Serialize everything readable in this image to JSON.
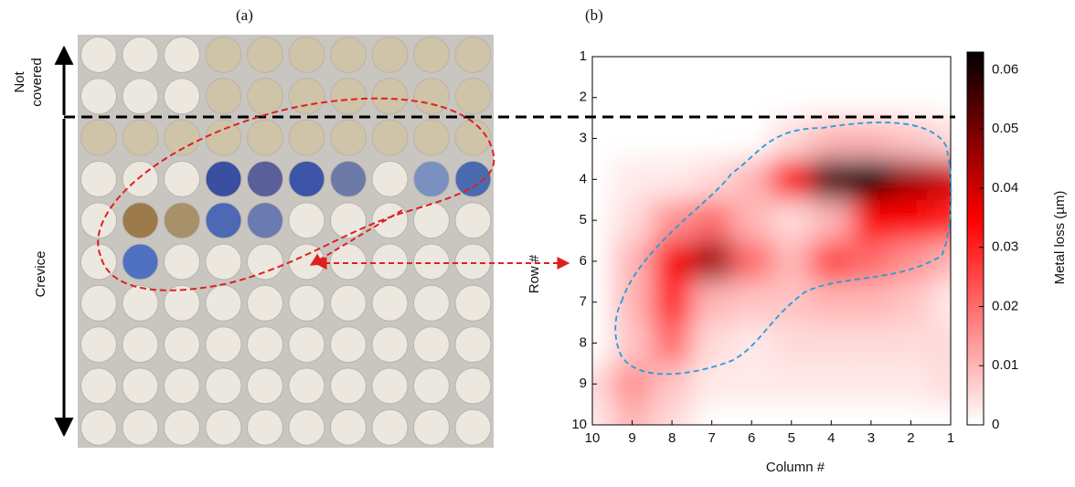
{
  "panel_a": {
    "label": "(a)",
    "top_label_lines": [
      "Not",
      "covered"
    ],
    "side_label": "Crevice"
  },
  "panel_b": {
    "label": "(b)"
  },
  "chart_data": {
    "type": "heatmap",
    "xlabel": "Column #",
    "ylabel": "Row #",
    "colorbar_label": "Metal loss (µm)",
    "x": [
      1,
      2,
      3,
      4,
      5,
      6,
      7,
      8,
      9,
      10
    ],
    "y": [
      1,
      2,
      3,
      4,
      5,
      6,
      7,
      8,
      9,
      10
    ],
    "values": [
      [
        0,
        0,
        0,
        0,
        0,
        0,
        0,
        0,
        0,
        0
      ],
      [
        0,
        0,
        0,
        0,
        0,
        0,
        0,
        0,
        0,
        0
      ],
      [
        0.005,
        0.008,
        0.01,
        0.01,
        0.005,
        0,
        0,
        0,
        0,
        0
      ],
      [
        0.04,
        0.045,
        0.062,
        0.055,
        0.035,
        0.01,
        0.005,
        0.003,
        0.003,
        0
      ],
      [
        0.03,
        0.035,
        0.035,
        0.01,
        0.005,
        0.01,
        0.02,
        0.015,
        0.005,
        0
      ],
      [
        0.01,
        0.015,
        0.02,
        0.025,
        0.01,
        0.02,
        0.045,
        0.035,
        0.01,
        0
      ],
      [
        0.003,
        0.008,
        0.01,
        0.01,
        0.008,
        0.008,
        0.01,
        0.03,
        0.01,
        0
      ],
      [
        0.005,
        0.005,
        0.005,
        0.005,
        0.005,
        0.003,
        0.005,
        0.02,
        0.008,
        0
      ],
      [
        0.005,
        0.003,
        0.003,
        0.003,
        0.003,
        0.003,
        0.003,
        0.008,
        0.015,
        0.005
      ],
      [
        0,
        0,
        0,
        0,
        0,
        0,
        0,
        0.005,
        0.01,
        0.003
      ]
    ],
    "xlim": [
      10,
      1
    ],
    "ylim": [
      1,
      10
    ],
    "xticks": [
      10,
      9,
      8,
      7,
      6,
      5,
      4,
      3,
      2,
      1
    ],
    "yticks": [
      1,
      2,
      3,
      4,
      5,
      6,
      7,
      8,
      9,
      10
    ],
    "clim": [
      0,
      0.063
    ],
    "cticks": [
      0,
      0.01,
      0.02,
      0.03,
      0.04,
      0.05,
      0.06
    ]
  }
}
